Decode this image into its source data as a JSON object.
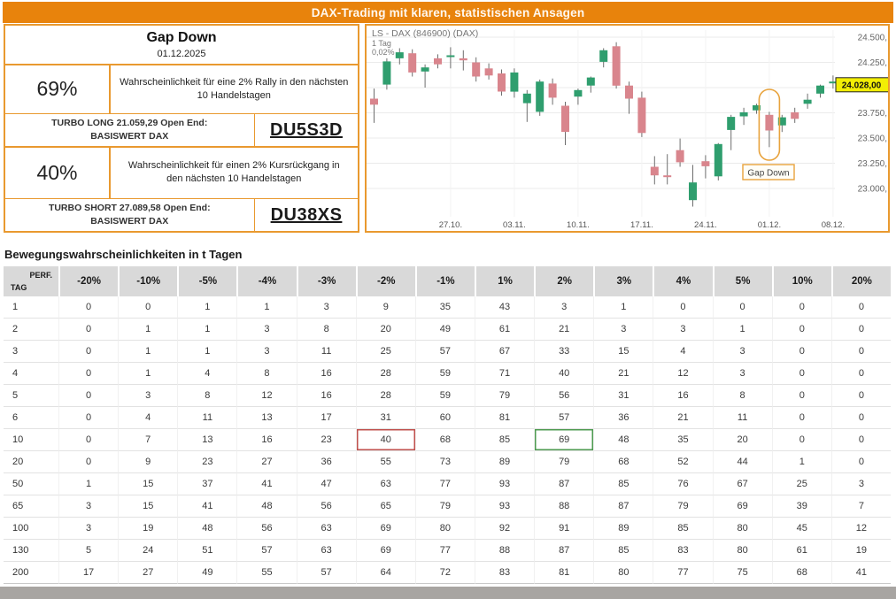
{
  "header": {
    "title": "DAX-Trading mit klaren, statistischen Ansagen"
  },
  "signal_panel": {
    "signal_name": "Gap Down",
    "signal_date": "01.12.2025",
    "long": {
      "probability": "69%",
      "description": "Wahrscheinlichkeit für eine 2% Rally in den nächsten 10 Handelstagen",
      "product": "TURBO LONG 21.059,29 Open End:",
      "underlying": "BASISWERT DAX",
      "wkn": "DU5S3D"
    },
    "short": {
      "probability": "40%",
      "description": "Wahrscheinlichkeit für einen 2% Kursrückgang in den nächsten 10 Handelstagen",
      "product": "TURBO SHORT 27.089,58 Open End:",
      "underlying": "BASISWERT DAX",
      "wkn": "DU38XS"
    }
  },
  "chart": {
    "instrument": "LS - DAX (846900) (DAX)",
    "timeframe": "1 Tag",
    "change": "0,02%",
    "last_price": "24.028,00",
    "annotation": "Gap Down",
    "y_axis": [
      "24.500,",
      "24.250,",
      "23.750,",
      "23.500,",
      "23.250,",
      "23.000,"
    ],
    "x_axis": [
      "27.10.",
      "03.11.",
      "10.11.",
      "17.11.",
      "24.11.",
      "01.12.",
      "08.12."
    ]
  },
  "chart_data": {
    "type": "candlestick",
    "title": "LS - DAX (846900) (DAX), 1 Tag",
    "ylim": [
      22750,
      24550
    ],
    "y_axis_values": [
      24500,
      24250,
      23750,
      23500,
      23250,
      23000
    ],
    "grid_prices": [
      24500,
      24250,
      24000,
      23750,
      23500,
      23250,
      23000
    ],
    "tick_indices": [
      6,
      11,
      16,
      21,
      26,
      31,
      36
    ],
    "last_price_value": 24028,
    "highlight_index": 31,
    "dates": [
      "17.10.",
      "20.10.",
      "21.10.",
      "22.10.",
      "23.10.",
      "24.10.",
      "27.10.",
      "28.10.",
      "29.10.",
      "30.10.",
      "31.10.",
      "03.11.",
      "04.11.",
      "05.11.",
      "06.11.",
      "07.11.",
      "10.11.",
      "11.11.",
      "12.11.",
      "13.11.",
      "14.11.",
      "17.11.",
      "18.11.",
      "19.11.",
      "20.11.",
      "21.11.",
      "24.11.",
      "25.11.",
      "26.11.",
      "27.11.",
      "28.11.",
      "01.12.",
      "02.12.",
      "03.12.",
      "04.12.",
      "05.12.",
      "08.12."
    ],
    "candles": [
      [
        23890,
        23990,
        23650,
        23830
      ],
      [
        24030,
        24290,
        23980,
        24260
      ],
      [
        24290,
        24390,
        24230,
        24350
      ],
      [
        24340,
        24380,
        24110,
        24150
      ],
      [
        24160,
        24230,
        24000,
        24200
      ],
      [
        24290,
        24330,
        24190,
        24230
      ],
      [
        24310,
        24400,
        24190,
        24320
      ],
      [
        24290,
        24370,
        24170,
        24270
      ],
      [
        24250,
        24300,
        24060,
        24110
      ],
      [
        24190,
        24240,
        24080,
        24120
      ],
      [
        24140,
        24180,
        23920,
        23960
      ],
      [
        23960,
        24190,
        23900,
        24150
      ],
      [
        23845,
        23975,
        23660,
        23940
      ],
      [
        23760,
        24080,
        23720,
        24060
      ],
      [
        24040,
        24090,
        23830,
        23900
      ],
      [
        23820,
        23860,
        23430,
        23560
      ],
      [
        23910,
        23990,
        23830,
        23975
      ],
      [
        24020,
        24110,
        23950,
        24100
      ],
      [
        24255,
        24390,
        24200,
        24370
      ],
      [
        24410,
        24450,
        23990,
        24020
      ],
      [
        24020,
        24060,
        23740,
        23890
      ],
      [
        23900,
        23960,
        23510,
        23550
      ],
      [
        23215,
        23320,
        23040,
        23130
      ],
      [
        23130,
        23340,
        23040,
        23125
      ],
      [
        23380,
        23495,
        23215,
        23260
      ],
      [
        22885,
        23233,
        22820,
        23060
      ],
      [
        23270,
        23330,
        23100,
        23220
      ],
      [
        23120,
        23450,
        23080,
        23440
      ],
      [
        23580,
        23730,
        23380,
        23710
      ],
      [
        23715,
        23800,
        23630,
        23755
      ],
      [
        23775,
        23840,
        23740,
        23825
      ],
      [
        23730,
        23760,
        23410,
        23575
      ],
      [
        23625,
        23730,
        23560,
        23705
      ],
      [
        23755,
        23800,
        23650,
        23690
      ],
      [
        23840,
        23940,
        23790,
        23880
      ],
      [
        23940,
        24030,
        23900,
        24020
      ],
      [
        24050,
        24120,
        23990,
        24060
      ]
    ]
  },
  "table": {
    "title": "Bewegungswahrscheinlichkeiten in t Tagen",
    "corner": {
      "top": "PERF.",
      "bottom": "TAG"
    },
    "columns": [
      "-20%",
      "-10%",
      "-5%",
      "-4%",
      "-3%",
      "-2%",
      "-1%",
      "1%",
      "2%",
      "3%",
      "4%",
      "5%",
      "10%",
      "20%"
    ],
    "rows": [
      {
        "tag": "1",
        "values": [
          0,
          0,
          1,
          1,
          3,
          9,
          35,
          43,
          3,
          1,
          0,
          0,
          0,
          0
        ]
      },
      {
        "tag": "2",
        "values": [
          0,
          1,
          1,
          3,
          8,
          20,
          49,
          61,
          21,
          3,
          3,
          1,
          0,
          0
        ]
      },
      {
        "tag": "3",
        "values": [
          0,
          1,
          1,
          3,
          11,
          25,
          57,
          67,
          33,
          15,
          4,
          3,
          0,
          0
        ]
      },
      {
        "tag": "4",
        "values": [
          0,
          1,
          4,
          8,
          16,
          28,
          59,
          71,
          40,
          21,
          12,
          3,
          0,
          0
        ]
      },
      {
        "tag": "5",
        "values": [
          0,
          3,
          8,
          12,
          16,
          28,
          59,
          79,
          56,
          31,
          16,
          8,
          0,
          0
        ]
      },
      {
        "tag": "6",
        "values": [
          0,
          4,
          11,
          13,
          17,
          31,
          60,
          81,
          57,
          36,
          21,
          11,
          0,
          0
        ]
      },
      {
        "tag": "10",
        "values": [
          0,
          7,
          13,
          16,
          23,
          40,
          68,
          85,
          69,
          48,
          35,
          20,
          0,
          0
        ]
      },
      {
        "tag": "20",
        "values": [
          0,
          9,
          23,
          27,
          36,
          55,
          73,
          89,
          79,
          68,
          52,
          44,
          1,
          0
        ]
      },
      {
        "tag": "50",
        "values": [
          1,
          15,
          37,
          41,
          47,
          63,
          77,
          93,
          87,
          85,
          76,
          67,
          25,
          3
        ]
      },
      {
        "tag": "65",
        "values": [
          3,
          15,
          41,
          48,
          56,
          65,
          79,
          93,
          88,
          87,
          79,
          69,
          39,
          7
        ]
      },
      {
        "tag": "100",
        "values": [
          3,
          19,
          48,
          56,
          63,
          69,
          80,
          92,
          91,
          89,
          85,
          80,
          45,
          12
        ]
      },
      {
        "tag": "130",
        "values": [
          5,
          24,
          51,
          57,
          63,
          69,
          77,
          88,
          87,
          85,
          83,
          80,
          61,
          19
        ]
      },
      {
        "tag": "200",
        "values": [
          17,
          27,
          49,
          55,
          57,
          64,
          72,
          83,
          81,
          80,
          77,
          75,
          68,
          41
        ]
      }
    ],
    "highlights": [
      {
        "row": "10",
        "col": "-2%",
        "style": "red"
      },
      {
        "row": "10",
        "col": "2%",
        "style": "green"
      }
    ]
  },
  "colors": {
    "accent_orange": "#E8830C",
    "border_orange": "#E9992F",
    "candle_up": "#2F9E6E",
    "candle_down": "#D9858D",
    "price_tag_bg": "#F2EE05",
    "table_header_bg": "#D9D9D9",
    "highlight_red": "#C0504D",
    "highlight_green": "#4E9B50",
    "footer_bar": "#A8A5A2"
  }
}
